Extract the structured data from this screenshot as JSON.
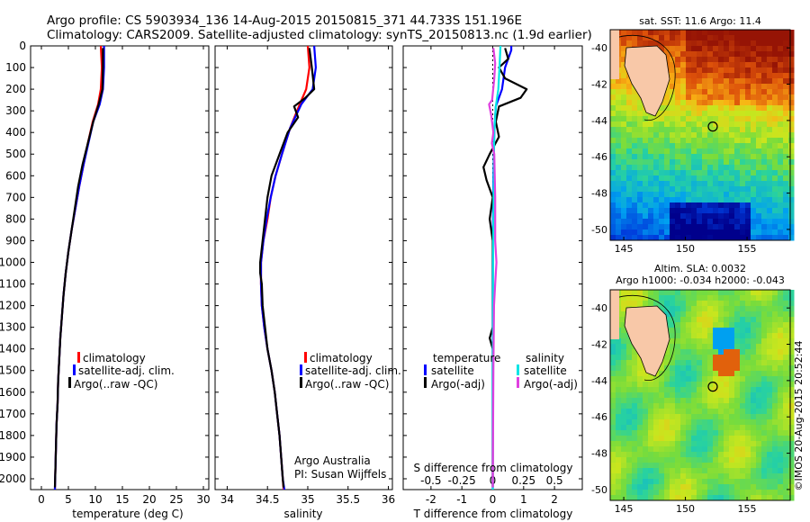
{
  "header": {
    "line1": "Argo profile: CS 5903934_136 14-Aug-2015 20150815_371 44.733S 151.196E",
    "line2": "Climatology: CARS2009. Satellite-adjusted climatology: synTS_20150813.nc (1.9d earlier)"
  },
  "credit": "©IMOS 20-Aug-2015 20:52:44",
  "colors": {
    "climatology": "#ff0000",
    "satellite": "#0000ff",
    "argo": "#000000",
    "satellite_salinity": "#00e5e5",
    "argo_salinity": "#e040e0",
    "land": "#f8c8a8"
  },
  "panels": {
    "temperature": {
      "xlabel": "temperature (deg C)",
      "xticks": [
        "0",
        "5",
        "10",
        "15",
        "20",
        "25",
        "30"
      ],
      "legend": [
        "climatology",
        "satellite-adj. clim.",
        "Argo(..raw -QC)"
      ]
    },
    "salinity": {
      "xlabel": "salinity",
      "xticks": [
        "34",
        "34.5",
        "35",
        "35.5",
        "36"
      ],
      "legend": [
        "climatology",
        "satellite-adj. clim.",
        "Argo(..raw -QC)"
      ],
      "note1": "Argo Australia",
      "note2": "PI: Susan Wijffels"
    },
    "difference": {
      "xlabel": "T difference from climatology",
      "top_label": "S difference from climatology",
      "top_ticks": [
        "-0.5",
        "-0.25",
        "0",
        "0.25",
        "0.5"
      ],
      "xticks": [
        "-2",
        "-1",
        "0",
        "1",
        "2"
      ],
      "legend_head_t": "temperature",
      "legend_head_s": "salinity",
      "legend_t": [
        "satellite",
        "Argo(-adj)"
      ],
      "legend_s": [
        "satellite",
        "Argo(-adj)"
      ]
    },
    "depth_ticks": [
      "0",
      "100",
      "200",
      "300",
      "400",
      "500",
      "600",
      "700",
      "800",
      "900",
      "1000",
      "1100",
      "1200",
      "1300",
      "1400",
      "1500",
      "1600",
      "1700",
      "1800",
      "1900",
      "2000"
    ]
  },
  "maps": {
    "sst": {
      "title": "sat. SST: 11.6  Argo: 11.4",
      "yticks": [
        "-40",
        "-42",
        "-44",
        "-46",
        "-48",
        "-50"
      ],
      "xticks": [
        "145",
        "150",
        "155"
      ]
    },
    "sla": {
      "title1": "Altim. SLA: 0.0032",
      "title2": "Argo h1000: -0.034 h2000: -0.043",
      "yticks": [
        "-40",
        "-42",
        "-44",
        "-46",
        "-48",
        "-50"
      ],
      "xticks": [
        "145",
        "150",
        "155"
      ]
    }
  },
  "chart_data": [
    {
      "type": "line",
      "title": "",
      "xlabel": "temperature (deg C)",
      "ylabel": "",
      "xlim": [
        -2,
        31
      ],
      "ylim": [
        2050,
        0
      ],
      "series": [
        {
          "name": "climatology",
          "color": "#ff0000",
          "points": [
            [
              11.0,
              0
            ],
            [
              11.2,
              100
            ],
            [
              11.0,
              200
            ],
            [
              10.5,
              270
            ],
            [
              9.5,
              350
            ],
            [
              8.6,
              450
            ],
            [
              7.8,
              550
            ],
            [
              7.0,
              650
            ],
            [
              6.3,
              750
            ],
            [
              5.6,
              850
            ],
            [
              5.0,
              950
            ],
            [
              4.5,
              1050
            ],
            [
              4.1,
              1150
            ],
            [
              3.8,
              1250
            ],
            [
              3.5,
              1350
            ],
            [
              3.3,
              1450
            ],
            [
              3.1,
              1550
            ],
            [
              3.0,
              1650
            ],
            [
              2.8,
              1750
            ],
            [
              2.7,
              1850
            ],
            [
              2.6,
              1950
            ],
            [
              2.5,
              2050
            ]
          ]
        },
        {
          "name": "satellite-adj. clim.",
          "color": "#0000ff",
          "points": [
            [
              11.6,
              0
            ],
            [
              11.6,
              100
            ],
            [
              11.4,
              200
            ],
            [
              10.8,
              270
            ],
            [
              9.6,
              350
            ],
            [
              8.7,
              450
            ],
            [
              7.8,
              550
            ],
            [
              7.0,
              650
            ],
            [
              6.3,
              750
            ],
            [
              5.6,
              850
            ],
            [
              5.0,
              950
            ],
            [
              4.5,
              1050
            ],
            [
              4.1,
              1150
            ],
            [
              3.8,
              1250
            ],
            [
              3.5,
              1350
            ],
            [
              3.3,
              1450
            ],
            [
              3.1,
              1550
            ],
            [
              3.0,
              1650
            ],
            [
              2.8,
              1750
            ],
            [
              2.7,
              1850
            ],
            [
              2.6,
              1950
            ],
            [
              2.5,
              2050
            ]
          ]
        },
        {
          "name": "Argo(..raw -QC)",
          "color": "#000000",
          "points": [
            [
              11.4,
              10
            ],
            [
              11.4,
              100
            ],
            [
              11.3,
              200
            ],
            [
              10.6,
              270
            ],
            [
              9.6,
              350
            ],
            [
              8.6,
              450
            ],
            [
              7.6,
              550
            ],
            [
              6.8,
              650
            ],
            [
              6.2,
              750
            ],
            [
              5.6,
              850
            ],
            [
              5.0,
              950
            ],
            [
              4.5,
              1050
            ],
            [
              4.1,
              1150
            ],
            [
              3.8,
              1250
            ],
            [
              3.5,
              1350
            ],
            [
              3.3,
              1450
            ],
            [
              3.1,
              1550
            ],
            [
              3.0,
              1650
            ],
            [
              2.8,
              1750
            ],
            [
              2.7,
              1850
            ],
            [
              2.6,
              1950
            ],
            [
              2.5,
              2040
            ]
          ]
        }
      ]
    },
    {
      "type": "line",
      "title": "",
      "xlabel": "salinity",
      "ylabel": "",
      "xlim": [
        33.85,
        36.05
      ],
      "ylim": [
        2050,
        0
      ],
      "series": [
        {
          "name": "climatology",
          "color": "#ff0000",
          "points": [
            [
              35.0,
              0
            ],
            [
              35.02,
              100
            ],
            [
              34.98,
              200
            ],
            [
              34.9,
              270
            ],
            [
              34.78,
              380
            ],
            [
              34.68,
              500
            ],
            [
              34.6,
              600
            ],
            [
              34.54,
              700
            ],
            [
              34.5,
              800
            ],
            [
              34.45,
              900
            ],
            [
              34.42,
              1000
            ],
            [
              34.42,
              1100
            ],
            [
              34.43,
              1200
            ],
            [
              34.46,
              1300
            ],
            [
              34.5,
              1400
            ],
            [
              34.55,
              1500
            ],
            [
              34.59,
              1600
            ],
            [
              34.62,
              1700
            ],
            [
              34.65,
              1800
            ],
            [
              34.67,
              1900
            ],
            [
              34.69,
              2000
            ],
            [
              34.7,
              2050
            ]
          ]
        },
        {
          "name": "satellite-adj. clim.",
          "color": "#0000ff",
          "points": [
            [
              35.08,
              0
            ],
            [
              35.1,
              100
            ],
            [
              35.06,
              200
            ],
            [
              34.92,
              270
            ],
            [
              34.78,
              380
            ],
            [
              34.68,
              500
            ],
            [
              34.6,
              600
            ],
            [
              34.54,
              700
            ],
            [
              34.49,
              800
            ],
            [
              34.45,
              900
            ],
            [
              34.42,
              1000
            ],
            [
              34.42,
              1100
            ],
            [
              34.43,
              1200
            ],
            [
              34.46,
              1300
            ],
            [
              34.5,
              1400
            ],
            [
              34.55,
              1500
            ],
            [
              34.59,
              1600
            ],
            [
              34.62,
              1700
            ],
            [
              34.65,
              1800
            ],
            [
              34.67,
              1900
            ],
            [
              34.69,
              2000
            ],
            [
              34.71,
              2050
            ]
          ]
        },
        {
          "name": "Argo(..raw -QC)",
          "color": "#000000",
          "points": [
            [
              35.02,
              10
            ],
            [
              35.05,
              100
            ],
            [
              35.08,
              200
            ],
            [
              34.97,
              240
            ],
            [
              34.83,
              280
            ],
            [
              34.88,
              330
            ],
            [
              34.75,
              400
            ],
            [
              34.65,
              500
            ],
            [
              34.55,
              600
            ],
            [
              34.5,
              700
            ],
            [
              34.47,
              800
            ],
            [
              34.44,
              900
            ],
            [
              34.41,
              1000
            ],
            [
              34.41,
              1050
            ],
            [
              34.43,
              1100
            ],
            [
              34.44,
              1200
            ],
            [
              34.47,
              1300
            ],
            [
              34.5,
              1400
            ],
            [
              34.55,
              1500
            ],
            [
              34.59,
              1600
            ],
            [
              34.62,
              1700
            ],
            [
              34.65,
              1800
            ],
            [
              34.67,
              1900
            ],
            [
              34.69,
              2000
            ],
            [
              34.7,
              2040
            ]
          ]
        }
      ]
    },
    {
      "type": "line",
      "title": "",
      "xlabel": "T difference from climatology",
      "ylabel": "",
      "xlim": [
        -2.9,
        2.9
      ],
      "ylim": [
        2050,
        0
      ],
      "series": [
        {
          "name": "temperature satellite",
          "color": "#0000ff",
          "points": [
            [
              0.6,
              0
            ],
            [
              0.6,
              20
            ],
            [
              0.4,
              100
            ],
            [
              0.3,
              200
            ],
            [
              0.1,
              280
            ],
            [
              0.05,
              400
            ],
            [
              0.02,
              600
            ],
            [
              0.0,
              1000
            ],
            [
              0.0,
              1500
            ],
            [
              0.0,
              2050
            ]
          ]
        },
        {
          "name": "temperature Argo(-adj)",
          "color": "#000000",
          "points": [
            [
              0.4,
              10
            ],
            [
              0.5,
              60
            ],
            [
              0.2,
              100
            ],
            [
              0.4,
              150
            ],
            [
              1.1,
              200
            ],
            [
              0.9,
              240
            ],
            [
              0.2,
              280
            ],
            [
              0.1,
              350
            ],
            [
              0.2,
              420
            ],
            [
              -0.1,
              500
            ],
            [
              -0.3,
              560
            ],
            [
              -0.2,
              620
            ],
            [
              0.0,
              700
            ],
            [
              -0.1,
              800
            ],
            [
              0.0,
              900
            ],
            [
              0.0,
              1000
            ],
            [
              0.0,
              1300
            ],
            [
              -0.1,
              1350
            ],
            [
              0.0,
              1400
            ],
            [
              0.0,
              1700
            ],
            [
              0.0,
              2040
            ]
          ]
        },
        {
          "name": "salinity satellite",
          "color": "#00e5e5",
          "points": [
            [
              0.25,
              0
            ],
            [
              0.22,
              100
            ],
            [
              0.18,
              200
            ],
            [
              0.1,
              280
            ],
            [
              0.05,
              400
            ],
            [
              0.03,
              600
            ],
            [
              0.02,
              800
            ],
            [
              0.01,
              1000
            ],
            [
              0.0,
              1500
            ],
            [
              0.0,
              2050
            ]
          ]
        },
        {
          "name": "salinity Argo(-adj)",
          "color": "#e040e0",
          "points": [
            [
              0.02,
              10
            ],
            [
              0.08,
              80
            ],
            [
              0.05,
              150
            ],
            [
              -0.02,
              250
            ],
            [
              -0.12,
              270
            ],
            [
              -0.05,
              320
            ],
            [
              0.02,
              400
            ],
            [
              -0.03,
              450
            ],
            [
              0.05,
              500
            ],
            [
              0.08,
              700
            ],
            [
              0.08,
              900
            ],
            [
              0.12,
              1000
            ],
            [
              0.08,
              1100
            ],
            [
              0.04,
              1200
            ],
            [
              0.02,
              1500
            ],
            [
              0.0,
              2040
            ]
          ]
        }
      ]
    }
  ]
}
